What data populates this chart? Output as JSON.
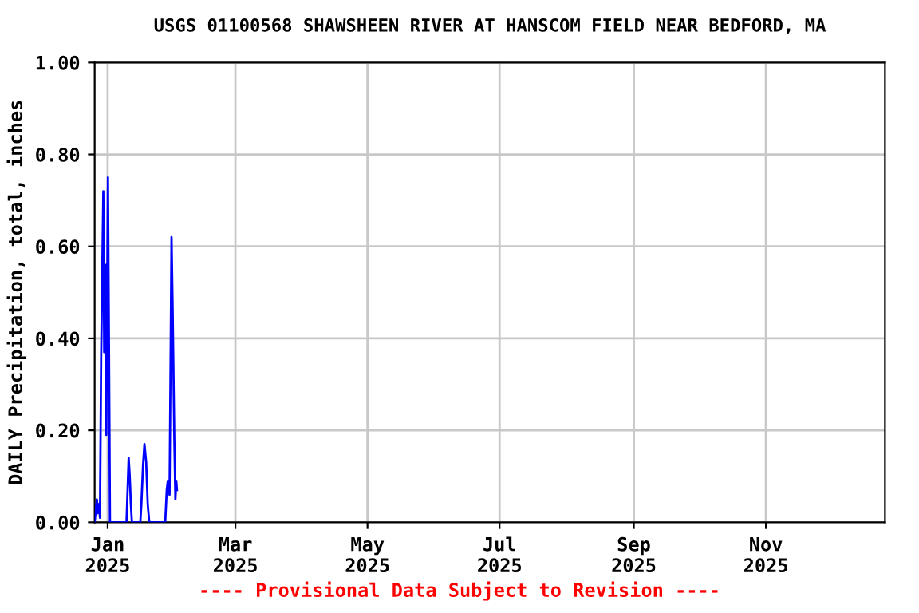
{
  "chart_data": {
    "type": "line",
    "title": "USGS 01100568 SHAWSHEEN RIVER AT HANSCOM FIELD NEAR BEDFORD, MA",
    "ylabel": "DAILY Precipitation, total, inches",
    "annotations": [
      "---- Provisional Data Subject to Revision ----"
    ],
    "series": [
      {
        "color": "#0000ff",
        "x": [
          "2024-12-26T00:00",
          "2024-12-27T00:00",
          "2024-12-27T11:00",
          "2024-12-28T00:00",
          "2024-12-28T11:00",
          "2024-12-29T00:00",
          "2024-12-30T00:00",
          "2024-12-30T10:00",
          "2024-12-31T04:00",
          "2024-12-31T09:00",
          "2025-01-01T03:00",
          "2025-01-01T15:00",
          "2025-01-02T02:00",
          "2025-01-09T17:00",
          "2025-01-10T05:00",
          "2025-01-10T17:00",
          "2025-01-11T05:00",
          "2025-01-11T17:00",
          "2025-01-12T05:00",
          "2025-01-16T02:00",
          "2025-01-16T14:00",
          "2025-01-17T07:00",
          "2025-01-18T00:00",
          "2025-01-18T19:00",
          "2025-01-19T12:00",
          "2025-01-20T05:00",
          "2025-01-27T14:00",
          "2025-01-28T07:00",
          "2025-01-28T19:00",
          "2025-01-29T14:00",
          "2025-01-30T00:00",
          "2025-01-30T12:00",
          "2025-01-31T00:00",
          "2025-01-31T19:00",
          "2025-02-01T07:00",
          "2025-02-01T17:00",
          "2025-02-02T00:00"
        ],
        "values": [
          0,
          0.05,
          0.02,
          0.04,
          0.01,
          0.36,
          0.72,
          0.37,
          0.56,
          0.19,
          0.75,
          0.37,
          0,
          0,
          0.07,
          0.14,
          0.1,
          0.04,
          0,
          0,
          0.04,
          0.12,
          0.17,
          0.13,
          0.04,
          0,
          0,
          0.07,
          0.09,
          0.06,
          0.31,
          0.62,
          0.47,
          0.18,
          0.05,
          0.09,
          0.07
        ]
      }
    ],
    "xlim": [
      "2024-12-26",
      "2025-12-26"
    ],
    "xticks": [
      {
        "value": "2025-01-01",
        "label": "Jan\n2025"
      },
      {
        "value": "2025-03-01",
        "label": "Mar\n2025"
      },
      {
        "value": "2025-05-01",
        "label": "May\n2025"
      },
      {
        "value": "2025-07-01",
        "label": "Jul\n2025"
      },
      {
        "value": "2025-09-01",
        "label": "Sep\n2025"
      },
      {
        "value": "2025-11-01",
        "label": "Nov\n2025"
      }
    ],
    "ylim": [
      0,
      1.0
    ],
    "yticks": [
      {
        "value": 0,
        "label": "0.00"
      },
      {
        "value": 0.2,
        "label": "0.20"
      },
      {
        "value": 0.4,
        "label": "0.40"
      },
      {
        "value": 0.6,
        "label": "0.60"
      },
      {
        "value": 0.8,
        "label": "0.80"
      },
      {
        "value": 1.0,
        "label": "1.00"
      }
    ],
    "grid": true
  }
}
